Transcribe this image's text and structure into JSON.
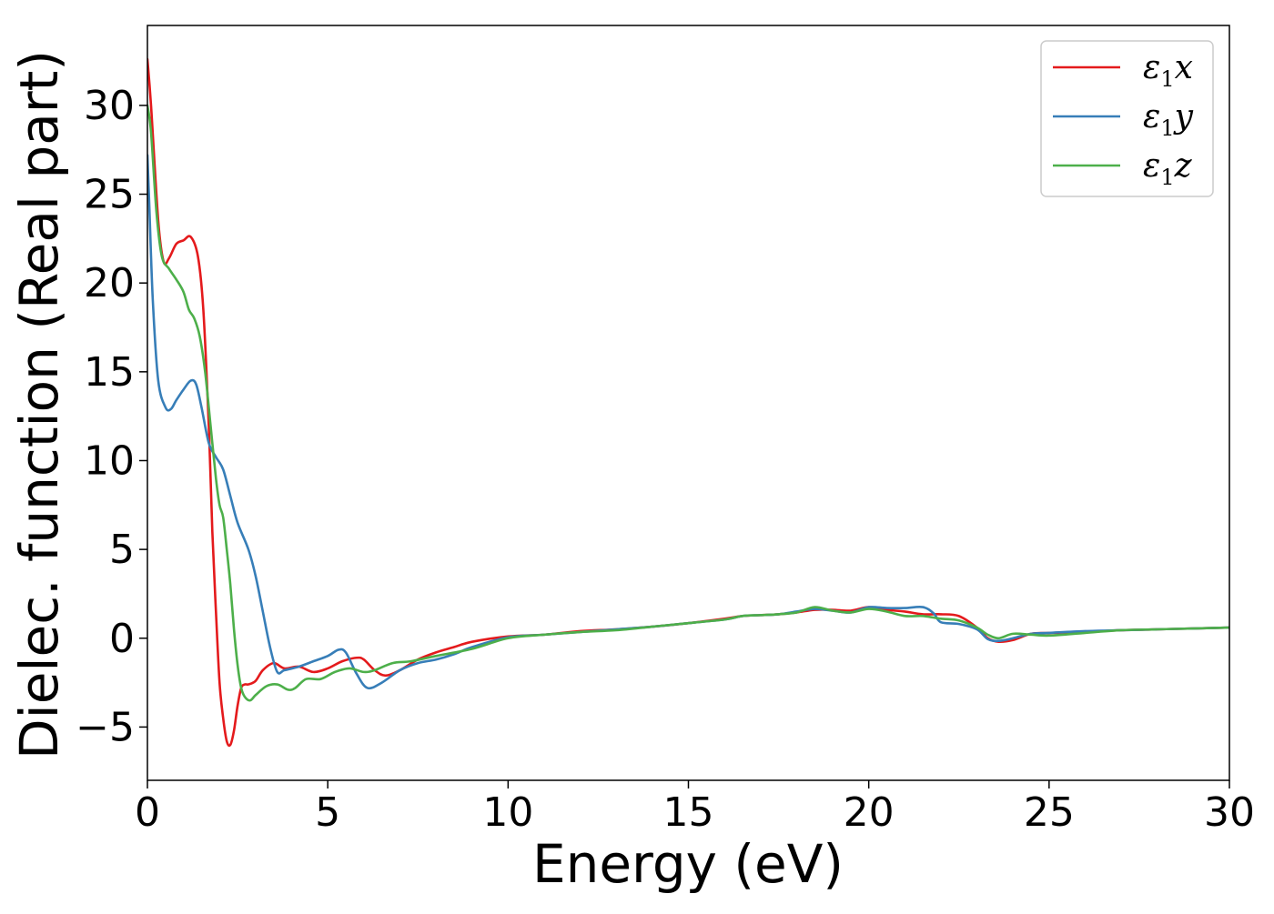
{
  "chart_data": {
    "type": "line",
    "title": "",
    "xlabel": "Energy (eV)",
    "ylabel": "Dielec. function (Real part)",
    "xlim": [
      0,
      30
    ],
    "ylim": [
      -8,
      34.5
    ],
    "xticks": [
      0,
      5,
      10,
      15,
      20,
      25,
      30
    ],
    "xtick_labels": [
      "0",
      "5",
      "10",
      "15",
      "20",
      "25",
      "30"
    ],
    "yticks": [
      -5,
      0,
      5,
      10,
      15,
      20,
      25,
      30
    ],
    "ytick_labels": [
      "−5",
      "0",
      "5",
      "10",
      "15",
      "20",
      "25",
      "30"
    ],
    "grid": false,
    "legend": {
      "position": "top-right",
      "frame": true
    },
    "series": [
      {
        "name": "ε1x",
        "legend_symbol": "ε",
        "legend_sub": "1",
        "legend_var": "x",
        "color": "#e41a1c",
        "x": [
          0,
          0.1,
          0.3,
          0.45,
          0.6,
          0.8,
          1.0,
          1.2,
          1.4,
          1.55,
          1.7,
          1.8,
          1.9,
          2.0,
          2.1,
          2.2,
          2.3,
          2.4,
          2.5,
          2.6,
          2.7,
          2.8,
          3.0,
          3.2,
          3.5,
          3.8,
          4.2,
          4.6,
          5.0,
          5.4,
          5.8,
          6.0,
          6.3,
          6.6,
          7.0,
          7.5,
          8.0,
          8.5,
          9.0,
          10.0,
          11.0,
          12.0,
          13.0,
          14.0,
          15.0,
          16.0,
          16.5,
          17.0,
          17.5,
          18.0,
          18.5,
          19.0,
          19.5,
          20.0,
          20.5,
          21.0,
          21.5,
          22.0,
          22.5,
          23.0,
          23.3,
          23.6,
          24.0,
          24.5,
          25.0,
          26.0,
          27.0,
          28.0,
          29.0,
          30.0
        ],
        "y": [
          32.6,
          30.0,
          23.5,
          21.2,
          21.4,
          22.2,
          22.4,
          22.6,
          21.5,
          18.5,
          12.0,
          6.0,
          1.5,
          -2.5,
          -4.5,
          -5.8,
          -6.0,
          -5.2,
          -3.8,
          -2.8,
          -2.6,
          -2.6,
          -2.4,
          -1.8,
          -1.4,
          -1.7,
          -1.6,
          -1.9,
          -1.7,
          -1.3,
          -1.1,
          -1.2,
          -1.8,
          -2.1,
          -1.8,
          -1.2,
          -0.8,
          -0.5,
          -0.2,
          0.1,
          0.2,
          0.4,
          0.5,
          0.65,
          0.85,
          1.1,
          1.25,
          1.3,
          1.35,
          1.45,
          1.6,
          1.6,
          1.55,
          1.75,
          1.6,
          1.5,
          1.35,
          1.35,
          1.25,
          0.6,
          0.0,
          -0.2,
          -0.1,
          0.25,
          0.3,
          0.35,
          0.45,
          0.5,
          0.55,
          0.6
        ]
      },
      {
        "name": "ε1y",
        "legend_symbol": "ε",
        "legend_sub": "1",
        "legend_var": "y",
        "color": "#377eb8",
        "x": [
          0,
          0.05,
          0.15,
          0.3,
          0.5,
          0.65,
          0.8,
          1.0,
          1.2,
          1.35,
          1.5,
          1.7,
          1.9,
          2.1,
          2.3,
          2.5,
          2.8,
          3.0,
          3.2,
          3.4,
          3.6,
          3.8,
          4.2,
          4.6,
          5.0,
          5.3,
          5.5,
          5.8,
          6.1,
          6.5,
          7.0,
          7.5,
          8.0,
          8.5,
          9.0,
          10.0,
          11.0,
          12.0,
          13.0,
          14.0,
          15.0,
          16.0,
          16.5,
          17.0,
          17.5,
          18.0,
          18.5,
          19.0,
          19.5,
          20.0,
          20.5,
          21.0,
          21.5,
          21.8,
          22.0,
          22.5,
          23.0,
          23.3,
          23.6,
          24.0,
          24.5,
          25.0,
          26.0,
          27.0,
          28.0,
          29.0,
          30.0
        ],
        "y": [
          27.2,
          24.5,
          19.0,
          14.5,
          13.0,
          12.9,
          13.4,
          14.0,
          14.5,
          14.3,
          13.0,
          11.0,
          10.2,
          9.5,
          8.0,
          6.5,
          5.0,
          3.5,
          1.5,
          -0.5,
          -1.9,
          -1.8,
          -1.6,
          -1.3,
          -1.0,
          -0.65,
          -0.8,
          -2.0,
          -2.8,
          -2.5,
          -1.8,
          -1.4,
          -1.2,
          -0.9,
          -0.5,
          0.05,
          0.2,
          0.35,
          0.5,
          0.65,
          0.85,
          1.05,
          1.25,
          1.3,
          1.35,
          1.5,
          1.65,
          1.55,
          1.45,
          1.75,
          1.7,
          1.7,
          1.75,
          1.4,
          0.9,
          0.8,
          0.5,
          -0.05,
          -0.15,
          0.0,
          0.25,
          0.3,
          0.4,
          0.45,
          0.5,
          0.55,
          0.6
        ]
      },
      {
        "name": "ε1z",
        "legend_symbol": "ε",
        "legend_sub": "1",
        "legend_var": "z",
        "color": "#4daf4a",
        "x": [
          0,
          0.1,
          0.25,
          0.4,
          0.6,
          0.8,
          1.0,
          1.15,
          1.3,
          1.45,
          1.6,
          1.75,
          1.9,
          2.0,
          2.1,
          2.2,
          2.3,
          2.4,
          2.5,
          2.6,
          2.7,
          2.85,
          3.0,
          3.3,
          3.6,
          3.9,
          4.1,
          4.4,
          4.8,
          5.2,
          5.6,
          6.0,
          6.3,
          6.8,
          7.3,
          8.0,
          9.0,
          10.0,
          11.0,
          12.0,
          13.0,
          14.0,
          15.0,
          16.0,
          16.5,
          17.0,
          17.5,
          18.0,
          18.5,
          19.0,
          19.5,
          20.0,
          20.5,
          21.0,
          21.5,
          22.0,
          22.5,
          23.0,
          23.3,
          23.6,
          24.0,
          24.5,
          25.0,
          26.0,
          27.0,
          28.0,
          29.0,
          30.0
        ],
        "y": [
          30.0,
          28.5,
          24.0,
          21.5,
          20.8,
          20.2,
          19.5,
          18.5,
          18.0,
          17.0,
          15.0,
          12.0,
          9.0,
          7.5,
          6.8,
          5.0,
          3.0,
          0.5,
          -1.5,
          -2.8,
          -3.3,
          -3.5,
          -3.2,
          -2.7,
          -2.6,
          -2.9,
          -2.8,
          -2.3,
          -2.3,
          -1.9,
          -1.7,
          -1.9,
          -1.8,
          -1.4,
          -1.3,
          -1.0,
          -0.6,
          0.0,
          0.2,
          0.35,
          0.45,
          0.65,
          0.85,
          1.05,
          1.25,
          1.3,
          1.35,
          1.45,
          1.75,
          1.55,
          1.45,
          1.65,
          1.5,
          1.25,
          1.25,
          1.1,
          1.0,
          0.6,
          0.2,
          0.0,
          0.25,
          0.2,
          0.15,
          0.3,
          0.45,
          0.5,
          0.55,
          0.6
        ]
      }
    ]
  }
}
